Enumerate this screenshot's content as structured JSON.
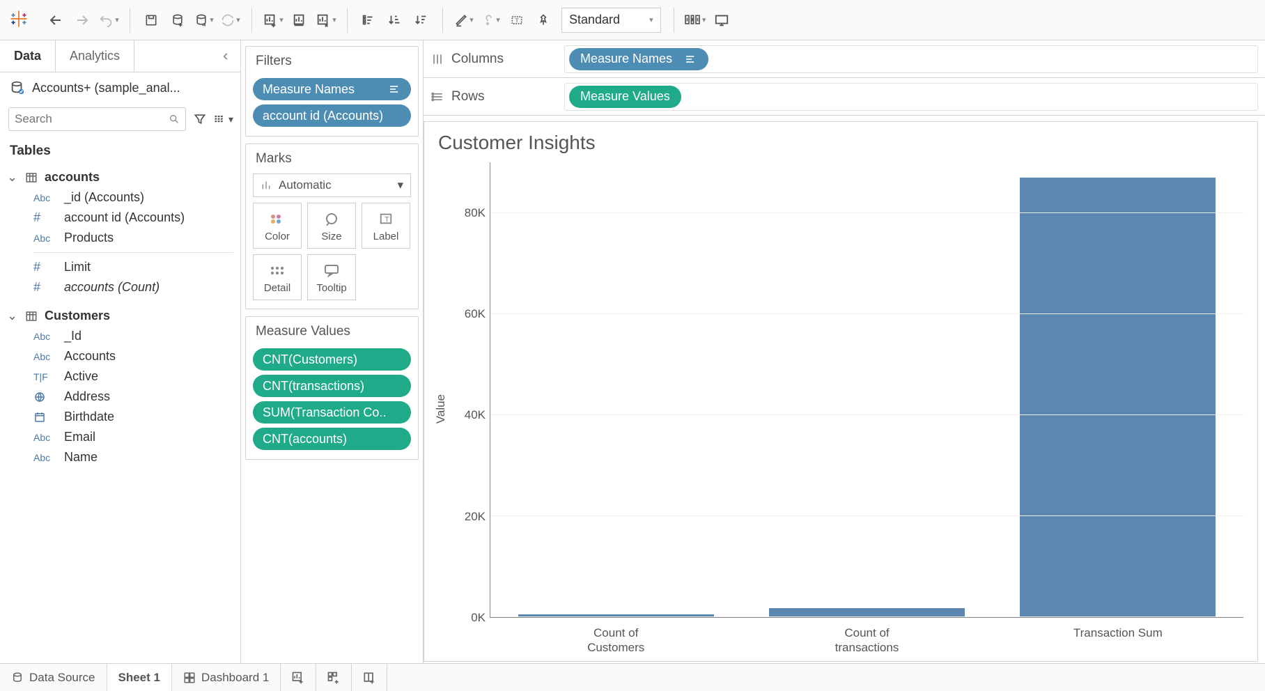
{
  "toolbar": {
    "fit_mode": "Standard"
  },
  "datapane": {
    "tabs": {
      "data": "Data",
      "analytics": "Analytics"
    },
    "datasource": "Accounts+ (sample_anal...",
    "search_placeholder": "Search",
    "tables_heading": "Tables",
    "tables": [
      {
        "name": "accounts",
        "fields": [
          {
            "icon": "Abc",
            "label": "_id (Accounts)"
          },
          {
            "icon": "#",
            "label": "account id (Accounts)"
          },
          {
            "icon": "Abc",
            "label": "Products"
          }
        ],
        "post_divider_fields": [
          {
            "icon": "#",
            "label": "Limit"
          },
          {
            "icon": "#",
            "label": "accounts (Count)",
            "italic": true
          }
        ]
      },
      {
        "name": "Customers",
        "fields": [
          {
            "icon": "Abc",
            "label": "_Id"
          },
          {
            "icon": "Abc",
            "label": "Accounts"
          },
          {
            "icon": "T|F",
            "label": "Active"
          },
          {
            "icon": "globe",
            "label": "Address"
          },
          {
            "icon": "cal",
            "label": "Birthdate"
          },
          {
            "icon": "Abc",
            "label": "Email"
          },
          {
            "icon": "Abc",
            "label": "Name"
          }
        ]
      }
    ]
  },
  "filters": {
    "title": "Filters",
    "pills": [
      {
        "label": "Measure Names",
        "color": "blue",
        "has_icon": true
      },
      {
        "label": "account id (Accounts)",
        "color": "blue"
      }
    ]
  },
  "marks": {
    "title": "Marks",
    "type": "Automatic",
    "buttons": [
      "Color",
      "Size",
      "Label",
      "Detail",
      "Tooltip"
    ]
  },
  "measure_values": {
    "title": "Measure Values",
    "pills": [
      "CNT(Customers)",
      "CNT(transactions)",
      "SUM(Transaction Co..",
      "CNT(accounts)"
    ]
  },
  "shelves": {
    "columns_label": "Columns",
    "rows_label": "Rows",
    "columns_pill": "Measure Names",
    "rows_pill": "Measure Values"
  },
  "viz": {
    "title": "Customer Insights",
    "y_axis_label": "Value",
    "type": "bar",
    "bar_color": "#5b87b0",
    "grid_color": "#eeeeee",
    "axis_color": "#888888",
    "y_max": 90000,
    "y_ticks": [
      {
        "value": 0,
        "label": "0K"
      },
      {
        "value": 20000,
        "label": "20K"
      },
      {
        "value": 40000,
        "label": "40K"
      },
      {
        "value": 60000,
        "label": "60K"
      },
      {
        "value": 80000,
        "label": "80K"
      }
    ],
    "bars": [
      {
        "label_line1": "Count of",
        "label_line2": "Customers",
        "value": 500
      },
      {
        "label_line1": "Count of",
        "label_line2": "transactions",
        "value": 1800
      },
      {
        "label_line1": "Transaction Sum",
        "label_line2": "",
        "value": 87000
      }
    ]
  },
  "bottom_tabs": {
    "data_source": "Data Source",
    "sheet": "Sheet 1",
    "dashboard": "Dashboard 1"
  }
}
